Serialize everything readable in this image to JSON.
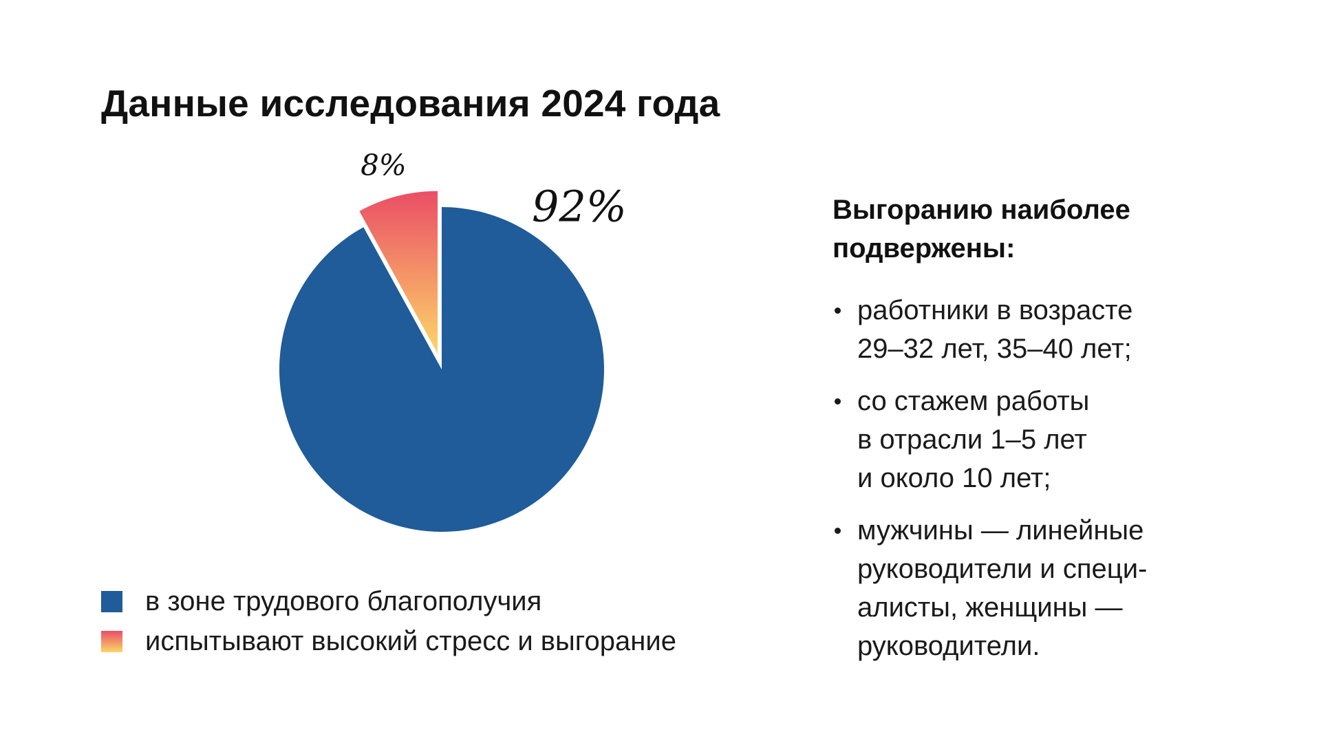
{
  "title": "Данные исследования 2024 года",
  "chart_data": {
    "type": "pie",
    "categories": [
      "в зоне трудового благополучия",
      "испытывают высокий стресс и выгорание"
    ],
    "values": [
      92,
      8
    ],
    "labels": [
      "92%",
      "8%"
    ],
    "exploded": [
      false,
      true
    ],
    "legend_position": "bottom-left",
    "colors": {
      "wellbeing": "#1f5c99",
      "stress_gradient_top": "#ea4e66",
      "stress_gradient_bottom": "#fdd668"
    }
  },
  "legend": {
    "items": [
      {
        "label": "в зоне трудового благополучия",
        "swatch": "solid-blue"
      },
      {
        "label": "испытывают высокий стресс и выгорание",
        "swatch": "gradient-red-yellow"
      }
    ]
  },
  "side": {
    "heading_lines": [
      "Выгоранию наиболее",
      "подвержены:"
    ],
    "bullets": [
      {
        "lines": [
          "работники в возрасте",
          "29–32 лет, 35–40 лет;"
        ]
      },
      {
        "lines": [
          "со стажем работы",
          "в отрасли 1–5 лет",
          "и около 10 лет;"
        ]
      },
      {
        "lines": [
          "мужчины — линейные",
          "руководители и специ-",
          "алисты, женщины —",
          "руководители."
        ]
      }
    ]
  }
}
